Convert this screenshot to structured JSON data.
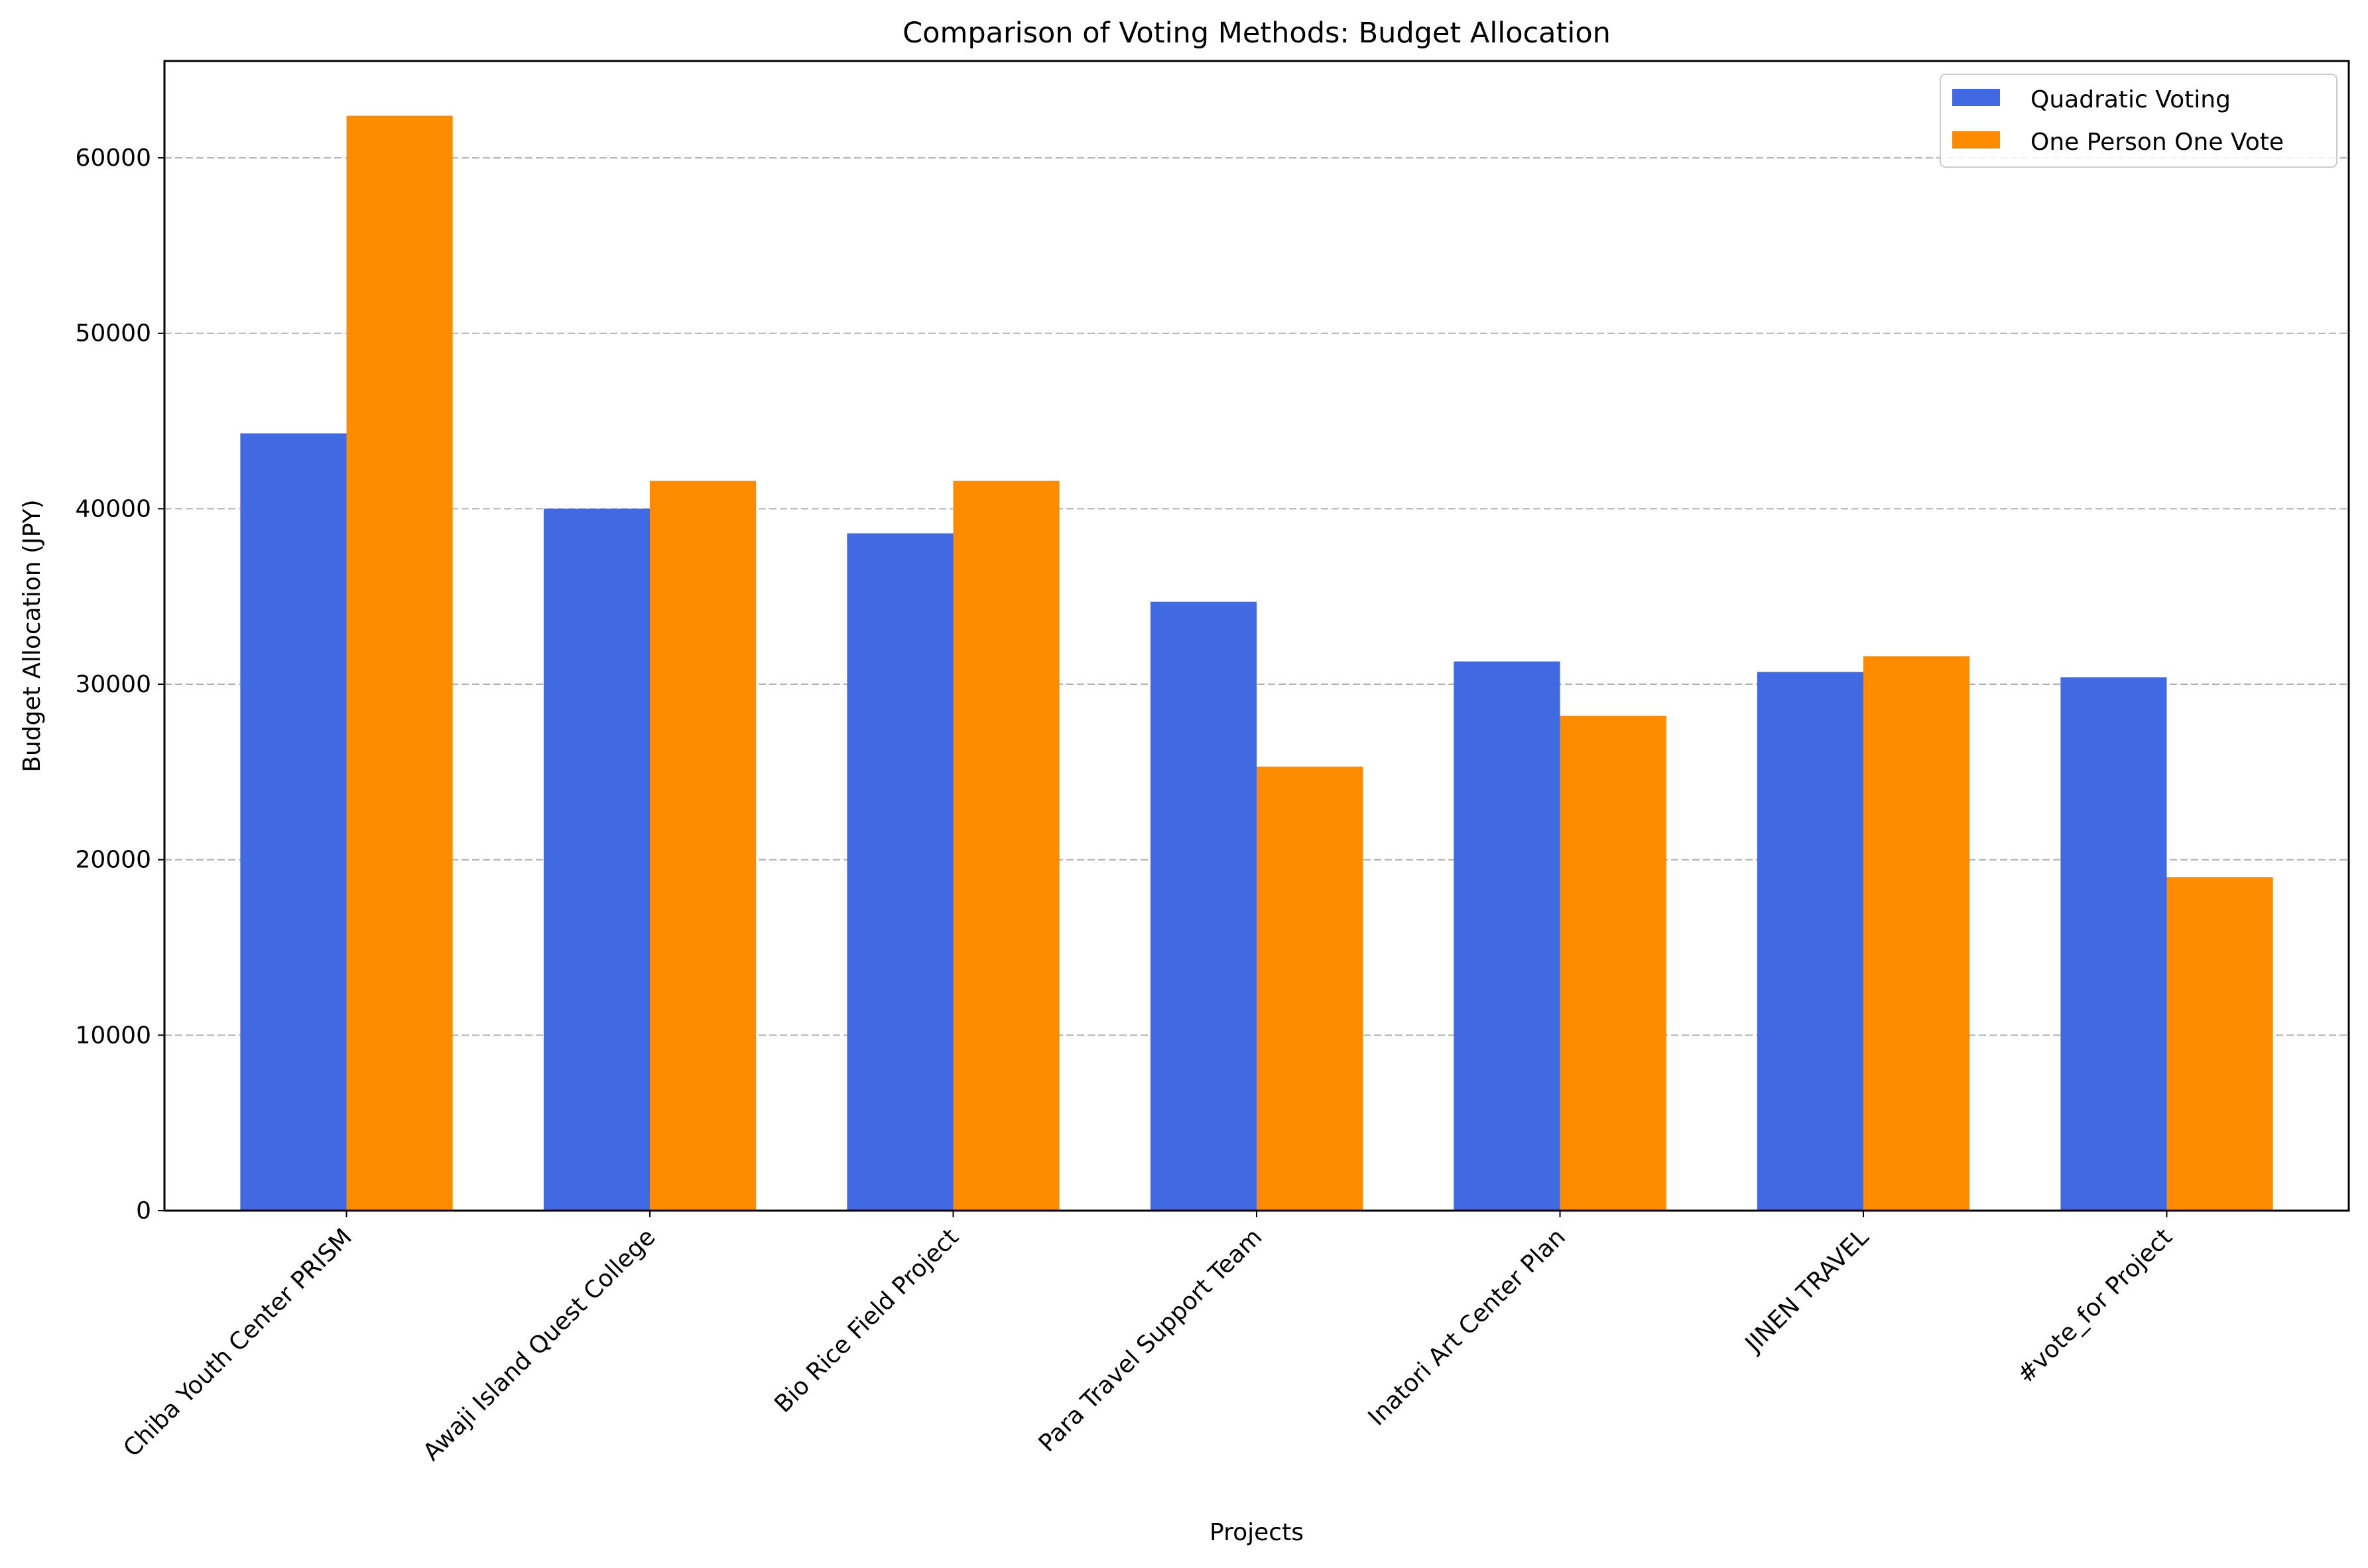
{
  "chart_data": {
    "type": "bar",
    "title": "Comparison of Voting Methods: Budget Allocation",
    "xlabel": "Projects",
    "ylabel": "Budget Allocation (JPY)",
    "categories": [
      "Chiba Youth Center PRISM",
      "Awaji Island Quest College",
      "Bio Rice Field Project",
      "Para Travel Support Team",
      "Inatori Art Center Plan",
      "JINEN TRAVEL",
      "#vote_for Project"
    ],
    "series": [
      {
        "name": "Quadratic Voting",
        "color": "#4169e1",
        "values": [
          44300,
          40000,
          38600,
          34700,
          31300,
          30700,
          30400
        ]
      },
      {
        "name": "One Person One Vote",
        "color": "#ff8c00",
        "values": [
          62400,
          41600,
          41600,
          25300,
          28200,
          31600,
          19000
        ]
      }
    ],
    "yticks": [
      "0",
      "10000",
      "20000",
      "30000",
      "40000",
      "50000",
      "60000"
    ],
    "ylim": [
      0,
      65520
    ],
    "grid": "y-dashed",
    "legend_position": "top-right"
  }
}
